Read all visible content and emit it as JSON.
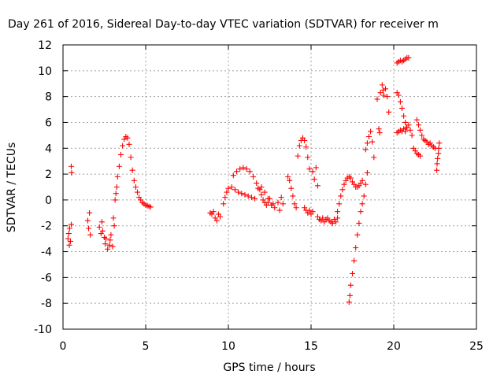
{
  "chart_data": {
    "type": "scatter",
    "title": "Day 261 of 2016, Sidereal Day-to-day VTEC variation (SDTVAR) for receiver m",
    "xlabel": "GPS time / hours",
    "ylabel": "SDTVAR / TECUs",
    "xlim": [
      0,
      25
    ],
    "ylim": [
      -10,
      12
    ],
    "xticks": [
      0,
      5,
      10,
      15,
      20,
      25
    ],
    "yticks": [
      -10,
      -8,
      -6,
      -4,
      -2,
      0,
      2,
      4,
      6,
      8,
      10,
      12
    ],
    "grid": true,
    "marker": "+",
    "color": "#ff0000",
    "series": [
      {
        "points": [
          [
            0.3,
            -3.0
          ],
          [
            0.35,
            -2.6
          ],
          [
            0.38,
            -3.5
          ],
          [
            0.4,
            -2.2
          ],
          [
            0.45,
            -3.2
          ],
          [
            0.5,
            -1.9
          ],
          [
            0.5,
            2.6
          ],
          [
            0.52,
            2.1
          ],
          [
            1.5,
            -1.6
          ],
          [
            1.55,
            -2.2
          ],
          [
            1.6,
            -1.0
          ],
          [
            1.65,
            -2.7
          ],
          [
            2.2,
            -2.1
          ],
          [
            2.3,
            -2.6
          ],
          [
            2.35,
            -1.7
          ],
          [
            2.4,
            -2.4
          ],
          [
            2.5,
            -2.9
          ],
          [
            2.55,
            -3.4
          ],
          [
            2.6,
            -3.0
          ],
          [
            2.7,
            -3.8
          ],
          [
            2.8,
            -3.5
          ],
          [
            2.85,
            -3.1
          ],
          [
            2.9,
            -2.7
          ],
          [
            3.0,
            -3.6
          ],
          [
            3.05,
            -1.4
          ],
          [
            3.1,
            -2.0
          ],
          [
            3.15,
            0.0
          ],
          [
            3.2,
            0.5
          ],
          [
            3.25,
            1.0
          ],
          [
            3.3,
            1.8
          ],
          [
            3.4,
            2.6
          ],
          [
            3.5,
            3.5
          ],
          [
            3.6,
            4.2
          ],
          [
            3.7,
            4.7
          ],
          [
            3.8,
            4.9
          ],
          [
            3.9,
            4.8
          ],
          [
            4.0,
            4.3
          ],
          [
            4.1,
            3.3
          ],
          [
            4.2,
            2.3
          ],
          [
            4.3,
            1.5
          ],
          [
            4.4,
            1.0
          ],
          [
            4.5,
            0.6
          ],
          [
            4.6,
            0.2
          ],
          [
            4.7,
            0.0
          ],
          [
            4.8,
            -0.2
          ],
          [
            4.9,
            -0.3
          ],
          [
            5.0,
            -0.4
          ],
          [
            5.1,
            -0.45
          ],
          [
            5.2,
            -0.5
          ],
          [
            5.3,
            -0.55
          ],
          [
            8.9,
            -1.0
          ],
          [
            9.0,
            -1.1
          ],
          [
            9.1,
            -0.9
          ],
          [
            9.2,
            -1.4
          ],
          [
            9.3,
            -1.6
          ],
          [
            9.4,
            -1.1
          ],
          [
            9.5,
            -1.3
          ],
          [
            9.7,
            -0.3
          ],
          [
            9.8,
            0.2
          ],
          [
            9.9,
            0.6
          ],
          [
            10.0,
            0.9
          ],
          [
            10.2,
            1.0
          ],
          [
            10.4,
            0.8
          ],
          [
            10.6,
            0.6
          ],
          [
            10.8,
            0.5
          ],
          [
            11.0,
            0.4
          ],
          [
            11.2,
            0.3
          ],
          [
            11.4,
            0.2
          ],
          [
            11.6,
            0.1
          ],
          [
            10.3,
            1.9
          ],
          [
            10.5,
            2.2
          ],
          [
            10.7,
            2.4
          ],
          [
            10.9,
            2.5
          ],
          [
            11.1,
            2.4
          ],
          [
            11.3,
            2.2
          ],
          [
            11.5,
            1.8
          ],
          [
            11.7,
            1.3
          ],
          [
            11.9,
            0.8
          ],
          [
            12.0,
            0.4
          ],
          [
            12.1,
            0.0
          ],
          [
            12.2,
            -0.2
          ],
          [
            12.3,
            -0.4
          ],
          [
            12.4,
            -0.2
          ],
          [
            12.5,
            0.1
          ],
          [
            12.7,
            -0.3
          ],
          [
            11.8,
            0.9
          ],
          [
            12.0,
            1.0
          ],
          [
            12.2,
            0.6
          ],
          [
            12.4,
            0.1
          ],
          [
            12.6,
            -0.4
          ],
          [
            12.8,
            -0.6
          ],
          [
            13.0,
            -0.2
          ],
          [
            13.1,
            -0.8
          ],
          [
            13.2,
            0.2
          ],
          [
            13.3,
            -0.3
          ],
          [
            13.6,
            1.8
          ],
          [
            13.7,
            1.5
          ],
          [
            13.8,
            0.9
          ],
          [
            13.9,
            0.3
          ],
          [
            14.0,
            -0.3
          ],
          [
            14.1,
            -0.6
          ],
          [
            14.2,
            3.4
          ],
          [
            14.3,
            4.2
          ],
          [
            14.4,
            4.6
          ],
          [
            14.5,
            4.8
          ],
          [
            14.6,
            4.6
          ],
          [
            14.7,
            4.1
          ],
          [
            14.8,
            3.3
          ],
          [
            14.9,
            2.4
          ],
          [
            14.6,
            -0.6
          ],
          [
            14.7,
            -0.8
          ],
          [
            14.8,
            -1.0
          ],
          [
            14.9,
            -0.8
          ],
          [
            15.0,
            -1.1
          ],
          [
            15.1,
            -0.9
          ],
          [
            15.1,
            2.2
          ],
          [
            15.2,
            1.6
          ],
          [
            15.3,
            2.5
          ],
          [
            15.4,
            1.1
          ],
          [
            15.4,
            -1.3
          ],
          [
            15.5,
            -1.5
          ],
          [
            15.6,
            -1.6
          ],
          [
            15.7,
            -1.4
          ],
          [
            15.8,
            -1.7
          ],
          [
            15.9,
            -1.5
          ],
          [
            16.0,
            -1.4
          ],
          [
            16.1,
            -1.6
          ],
          [
            16.2,
            -1.7
          ],
          [
            16.3,
            -1.8
          ],
          [
            16.4,
            -1.5
          ],
          [
            16.5,
            -1.7
          ],
          [
            16.6,
            -1.4
          ],
          [
            16.6,
            -0.9
          ],
          [
            16.7,
            -0.3
          ],
          [
            16.8,
            0.3
          ],
          [
            16.9,
            0.8
          ],
          [
            17.0,
            1.2
          ],
          [
            17.1,
            1.5
          ],
          [
            17.2,
            1.7
          ],
          [
            17.3,
            1.8
          ],
          [
            17.4,
            1.7
          ],
          [
            17.5,
            1.4
          ],
          [
            17.6,
            1.2
          ],
          [
            17.7,
            1.0
          ],
          [
            17.8,
            1.0
          ],
          [
            17.9,
            1.1
          ],
          [
            18.0,
            1.3
          ],
          [
            18.1,
            1.5
          ],
          [
            17.3,
            -7.9
          ],
          [
            17.35,
            -7.4
          ],
          [
            17.4,
            -6.6
          ],
          [
            17.5,
            -5.7
          ],
          [
            17.6,
            -4.7
          ],
          [
            17.7,
            -3.7
          ],
          [
            17.8,
            -2.7
          ],
          [
            17.9,
            -1.8
          ],
          [
            18.0,
            -0.9
          ],
          [
            18.1,
            -0.3
          ],
          [
            18.2,
            0.3
          ],
          [
            18.3,
            1.2
          ],
          [
            18.4,
            2.1
          ],
          [
            18.3,
            3.9
          ],
          [
            18.4,
            4.4
          ],
          [
            18.5,
            4.9
          ],
          [
            18.6,
            5.3
          ],
          [
            18.7,
            4.5
          ],
          [
            18.8,
            3.3
          ],
          [
            19.0,
            7.8
          ],
          [
            19.1,
            5.5
          ],
          [
            19.15,
            5.2
          ],
          [
            19.2,
            8.3
          ],
          [
            19.3,
            8.9
          ],
          [
            19.35,
            8.5
          ],
          [
            19.4,
            8.1
          ],
          [
            19.5,
            8.6
          ],
          [
            19.6,
            8.0
          ],
          [
            19.7,
            6.8
          ],
          [
            20.2,
            10.6
          ],
          [
            20.3,
            10.7
          ],
          [
            20.4,
            10.8
          ],
          [
            20.5,
            10.7
          ],
          [
            20.6,
            10.8
          ],
          [
            20.7,
            10.9
          ],
          [
            20.8,
            11.0
          ],
          [
            20.9,
            11.0
          ],
          [
            20.2,
            8.3
          ],
          [
            20.3,
            8.1
          ],
          [
            20.4,
            7.6
          ],
          [
            20.5,
            7.1
          ],
          [
            20.6,
            6.5
          ],
          [
            20.7,
            6.0
          ],
          [
            20.75,
            5.6
          ],
          [
            20.2,
            5.2
          ],
          [
            20.3,
            5.3
          ],
          [
            20.4,
            5.4
          ],
          [
            20.5,
            5.3
          ],
          [
            20.6,
            5.5
          ],
          [
            20.7,
            5.3
          ],
          [
            20.8,
            5.6
          ],
          [
            20.9,
            5.8
          ],
          [
            21.0,
            5.4
          ],
          [
            21.1,
            5.0
          ],
          [
            21.2,
            4.0
          ],
          [
            21.3,
            3.8
          ],
          [
            21.4,
            3.6
          ],
          [
            21.5,
            3.5
          ],
          [
            21.6,
            3.4
          ],
          [
            21.4,
            6.2
          ],
          [
            21.5,
            5.8
          ],
          [
            21.6,
            5.4
          ],
          [
            21.7,
            5.0
          ],
          [
            21.8,
            4.7
          ],
          [
            21.9,
            4.6
          ],
          [
            22.0,
            4.5
          ],
          [
            22.1,
            4.3
          ],
          [
            22.2,
            4.4
          ],
          [
            22.3,
            4.2
          ],
          [
            22.4,
            4.1
          ],
          [
            22.5,
            4.0
          ],
          [
            22.6,
            2.3
          ],
          [
            22.62,
            2.8
          ],
          [
            22.65,
            3.2
          ],
          [
            22.7,
            3.6
          ],
          [
            22.72,
            4.0
          ],
          [
            22.75,
            4.4
          ]
        ]
      }
    ]
  }
}
